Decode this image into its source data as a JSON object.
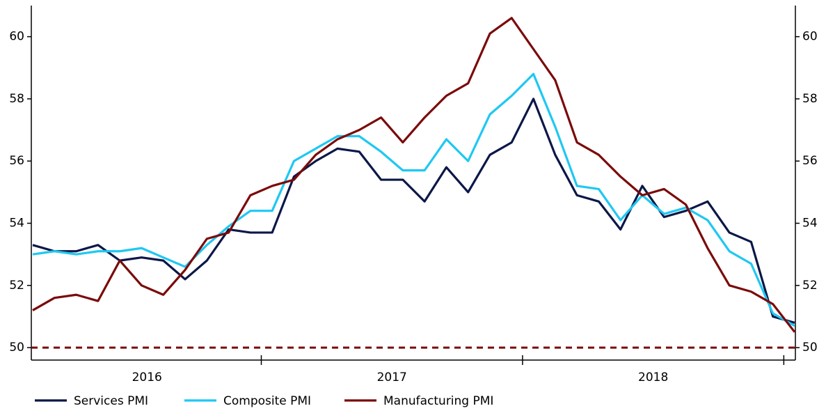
{
  "chart_data": {
    "type": "line",
    "categories": [
      "2016",
      "2016",
      "2016",
      "2016",
      "2016",
      "2016",
      "2016",
      "2016",
      "2016",
      "2016",
      "2016",
      "2017",
      "2017",
      "2017",
      "2017",
      "2017",
      "2017",
      "2017",
      "2017",
      "2017",
      "2017",
      "2017",
      "2017",
      "2018",
      "2018",
      "2018",
      "2018",
      "2018",
      "2018",
      "2018",
      "2018",
      "2018",
      "2018",
      "2018",
      "2018",
      null
    ],
    "series": [
      {
        "name": "Services PMI",
        "color": "#0b1747",
        "values": [
          53.3,
          53.1,
          53.1,
          53.3,
          52.8,
          52.9,
          52.8,
          52.2,
          52.8,
          53.8,
          53.7,
          53.7,
          55.5,
          56.0,
          56.4,
          56.3,
          55.4,
          55.4,
          54.7,
          55.8,
          55.0,
          56.2,
          56.6,
          58.0,
          56.2,
          54.9,
          54.7,
          53.8,
          55.2,
          54.2,
          54.4,
          54.7,
          53.7,
          53.4,
          51.0,
          50.8
        ]
      },
      {
        "name": "Composite PMI",
        "color": "#1ec8f2",
        "values": [
          53.0,
          53.1,
          53.0,
          53.1,
          53.1,
          53.2,
          52.9,
          52.6,
          53.3,
          53.9,
          54.4,
          54.4,
          56.0,
          56.4,
          56.8,
          56.8,
          56.3,
          55.7,
          55.7,
          56.7,
          56.0,
          57.5,
          58.1,
          58.8,
          57.1,
          55.2,
          55.1,
          54.1,
          54.9,
          54.3,
          54.5,
          54.1,
          53.1,
          52.7,
          51.1,
          50.7
        ]
      },
      {
        "name": "Manufacturing PMI",
        "color": "#7b0a0a",
        "values": [
          51.2,
          51.6,
          51.7,
          51.5,
          52.8,
          52.0,
          51.7,
          52.5,
          53.5,
          53.7,
          54.9,
          55.2,
          55.4,
          56.2,
          56.7,
          57.0,
          57.4,
          56.6,
          57.4,
          58.1,
          58.5,
          60.1,
          60.6,
          59.6,
          58.6,
          56.6,
          56.2,
          55.5,
          54.9,
          55.1,
          54.6,
          53.2,
          52.0,
          51.8,
          51.4,
          50.5
        ]
      }
    ],
    "ylim": [
      49.6,
      61
    ],
    "yticks": [
      50,
      52,
      54,
      56,
      58,
      60
    ],
    "y2lim": [
      49.6,
      61
    ],
    "y2ticks": [
      50,
      52,
      54,
      56,
      58,
      60
    ],
    "hlines": [
      {
        "value": 50,
        "color": "#7b0a0a",
        "style": "dashed"
      }
    ],
    "legend": "bottom",
    "grid": false
  }
}
